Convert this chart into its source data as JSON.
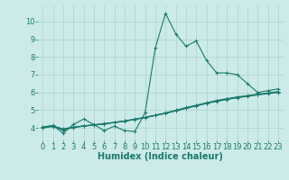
{
  "xlabel": "Humidex (Indice chaleur)",
  "background_color": "#cceae7",
  "grid_color": "#aad4d0",
  "line_color": "#1a7a6e",
  "x_values": [
    0,
    1,
    2,
    3,
    4,
    5,
    6,
    7,
    8,
    9,
    10,
    11,
    12,
    13,
    14,
    15,
    16,
    17,
    18,
    19,
    20,
    21,
    22,
    23
  ],
  "series1": [
    4.05,
    4.15,
    3.7,
    4.2,
    4.5,
    4.2,
    3.85,
    4.1,
    3.85,
    3.8,
    4.85,
    8.5,
    10.45,
    9.3,
    8.6,
    8.9,
    7.8,
    7.1,
    7.1,
    7.0,
    6.5,
    6.0,
    6.1,
    6.2
  ],
  "series2": [
    4.05,
    4.1,
    3.95,
    4.05,
    4.12,
    4.18,
    4.25,
    4.32,
    4.4,
    4.5,
    4.6,
    4.72,
    4.85,
    5.0,
    5.15,
    5.28,
    5.42,
    5.55,
    5.65,
    5.75,
    5.82,
    5.9,
    5.97,
    6.05
  ],
  "series3": [
    4.0,
    4.08,
    3.88,
    4.02,
    4.1,
    4.16,
    4.22,
    4.3,
    4.38,
    4.48,
    4.58,
    4.7,
    4.82,
    4.96,
    5.1,
    5.24,
    5.38,
    5.5,
    5.6,
    5.7,
    5.78,
    5.86,
    5.93,
    6.0
  ],
  "series4": [
    4.02,
    4.12,
    3.92,
    4.04,
    4.11,
    4.17,
    4.23,
    4.31,
    4.39,
    4.49,
    4.59,
    4.71,
    4.83,
    4.97,
    5.12,
    5.26,
    5.4,
    5.52,
    5.62,
    5.72,
    5.8,
    5.88,
    5.95,
    6.02
  ],
  "xlim": [
    -0.5,
    23.5
  ],
  "ylim": [
    3.3,
    10.9
  ],
  "yticks": [
    4,
    5,
    6,
    7,
    8,
    9,
    10
  ],
  "xticks": [
    0,
    1,
    2,
    3,
    4,
    5,
    6,
    7,
    8,
    9,
    10,
    11,
    12,
    13,
    14,
    15,
    16,
    17,
    18,
    19,
    20,
    21,
    22,
    23
  ],
  "xlabel_fontsize": 7,
  "tick_fontsize": 6,
  "figsize": [
    3.2,
    2.0
  ],
  "dpi": 100
}
